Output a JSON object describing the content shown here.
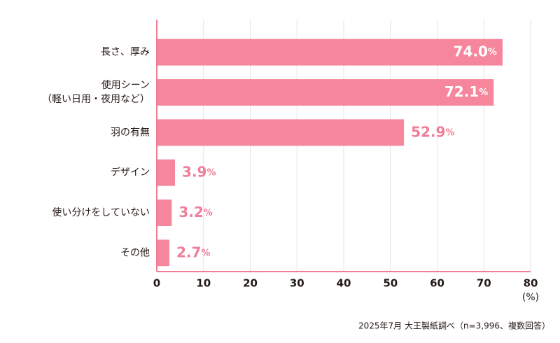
{
  "chart_data": {
    "type": "bar",
    "orientation": "horizontal",
    "categories": [
      "長さ、厚み",
      "使用シーン\n（軽い日用・夜用など）",
      "羽の有無",
      "デザイン",
      "使い分けをしていない",
      "その他"
    ],
    "values": [
      74.0,
      72.1,
      52.9,
      3.9,
      3.2,
      2.7
    ],
    "value_labels": [
      "74.0%",
      "72.1%",
      "52.9%",
      "3.9%",
      "3.2%",
      "2.7%"
    ],
    "color": "#f5869c",
    "xlim": [
      0,
      80
    ],
    "xticks": [
      0,
      10,
      20,
      30,
      40,
      50,
      60,
      70,
      80
    ],
    "xlabel": "(%)",
    "grid": true,
    "note": "2025年7月 大王製紙調べ（n=3,996、複数回答）"
  }
}
